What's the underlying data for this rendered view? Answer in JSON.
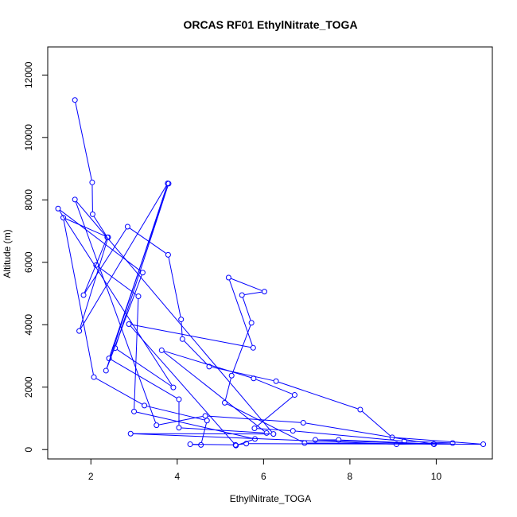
{
  "chart_data": {
    "type": "line",
    "title": "ORCAS RF01 EthylNitrate_TOGA",
    "xlabel": "EthylNitrate_TOGA",
    "ylabel": "Altitude (m)",
    "xlim": [
      1.0,
      11.3
    ],
    "ylim": [
      -300,
      12900
    ],
    "xticks": [
      2,
      4,
      6,
      8,
      10
    ],
    "yticks": [
      0,
      2000,
      4000,
      6000,
      8000,
      10000,
      12000
    ],
    "grid": false,
    "markers": "open-circle",
    "colors": {
      "series": "#0000ff",
      "axis": "#000000"
    },
    "series": [
      {
        "points": [
          [
            1.63,
            11200
          ],
          [
            2.03,
            8560
          ],
          [
            2.04,
            7540
          ],
          [
            2.38,
            6800
          ],
          [
            1.83,
            4950
          ],
          [
            2.85,
            7140
          ],
          [
            3.79,
            6240
          ],
          [
            4.09,
            4170
          ],
          [
            4.12,
            3540
          ],
          [
            4.74,
            2660
          ],
          [
            6.29,
            2190
          ],
          [
            8.24,
            1280
          ],
          [
            8.98,
            390
          ],
          [
            11.09,
            170
          ],
          [
            5.6,
            190
          ],
          [
            5.35,
            150
          ],
          [
            4.3,
            170
          ],
          [
            4.55,
            150
          ],
          [
            4.69,
            930
          ],
          [
            3.24,
            1410
          ],
          [
            2.07,
            2320
          ],
          [
            1.36,
            7430
          ],
          [
            2.4,
            6800
          ],
          [
            1.73,
            3800
          ],
          [
            3.78,
            8530
          ],
          [
            2.35,
            2530
          ],
          [
            3.2,
            5670
          ],
          [
            1.24,
            7720
          ],
          [
            3.91,
            1990
          ],
          [
            2.56,
            3250
          ],
          [
            3.8,
            8520
          ],
          [
            2.42,
            2920
          ],
          [
            4.04,
            1610
          ],
          [
            4.04,
            700
          ],
          [
            6.07,
            530
          ],
          [
            3.64,
            3180
          ],
          [
            5.77,
            2280
          ],
          [
            6.72,
            1750
          ],
          [
            5.79,
            680
          ],
          [
            6.68,
            600
          ],
          [
            9.26,
            270
          ],
          [
            10.38,
            210
          ],
          [
            9.08,
            170
          ],
          [
            2.92,
            510
          ],
          [
            6.23,
            500
          ],
          [
            1.63,
            8010
          ],
          [
            3.52,
            780
          ],
          [
            4.65,
            1080
          ],
          [
            6.92,
            860
          ],
          [
            9.95,
            170
          ],
          [
            7.2,
            310
          ],
          [
            7.74,
            310
          ],
          [
            9.94,
            180
          ],
          [
            6.95,
            210
          ],
          [
            5.1,
            1500
          ],
          [
            5.26,
            2370
          ],
          [
            5.72,
            4060
          ],
          [
            5.5,
            4950
          ],
          [
            6.02,
            5060
          ],
          [
            5.19,
            5510
          ],
          [
            5.76,
            3260
          ],
          [
            2.88,
            4020
          ],
          [
            5.36,
            130
          ],
          [
            5.8,
            340
          ],
          [
            3.0,
            1220
          ],
          [
            3.1,
            4910
          ],
          [
            2.12,
            5910
          ]
        ]
      }
    ]
  }
}
